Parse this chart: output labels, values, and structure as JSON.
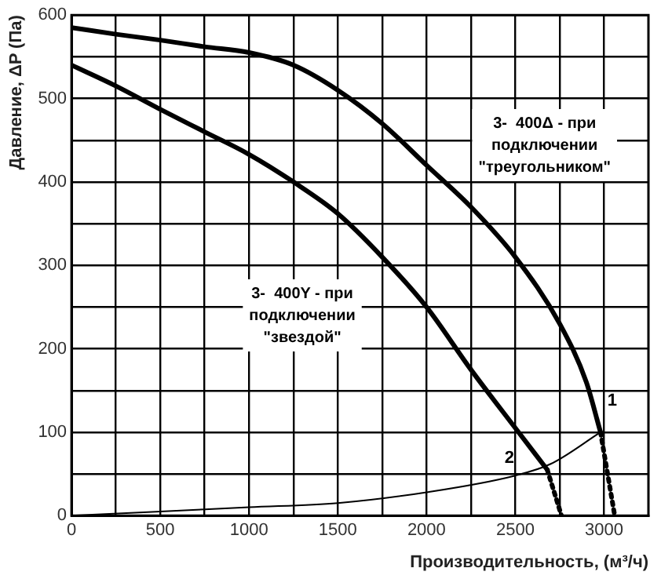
{
  "chart_data": {
    "type": "line",
    "xlabel": "Производительность, (м³/ч)",
    "ylabel": "Давление, ΔP (Па)",
    "xlim": [
      0,
      3250
    ],
    "ylim": [
      0,
      600
    ],
    "xticks": [
      0,
      {
        "value": 250,
        "label": null
      },
      500,
      {
        "value": 750,
        "label": null
      },
      1000,
      {
        "value": 1250,
        "label": null
      },
      1500,
      {
        "value": 1750,
        "label": null
      },
      2000,
      {
        "value": 2250,
        "label": null
      },
      2500,
      {
        "value": 2750,
        "label": null
      },
      3000
    ],
    "yticks": [
      0,
      {
        "value": 50,
        "label": null
      },
      100,
      {
        "value": 150,
        "label": null
      },
      200,
      {
        "value": 250,
        "label": null
      },
      300,
      {
        "value": 350,
        "label": null
      },
      400,
      {
        "value": 450,
        "label": null
      },
      500,
      {
        "value": 550,
        "label": null
      },
      600
    ],
    "grid": true,
    "legend": false,
    "marker": "none",
    "series": [
      {
        "name": "1",
        "color": "#000000",
        "x": [
          0,
          250,
          500,
          750,
          1000,
          1250,
          1500,
          1750,
          2000,
          2250,
          2500,
          2750,
          2900,
          2980
        ],
        "values": [
          585,
          577,
          570,
          562,
          555,
          540,
          510,
          470,
          420,
          370,
          310,
          230,
          160,
          100
        ]
      },
      {
        "name": "2",
        "color": "#000000",
        "x": [
          0,
          250,
          500,
          750,
          1000,
          1250,
          1500,
          1750,
          2000,
          2250,
          2500,
          2680
        ],
        "values": [
          540,
          515,
          487,
          460,
          433,
          400,
          362,
          310,
          250,
          175,
          105,
          55
        ]
      },
      {
        "color": "#000000",
        "line_style": "dotted",
        "x": [
          2980,
          3060
        ],
        "values": [
          100,
          0
        ]
      },
      {
        "color": "#000000",
        "line_style": "dotted",
        "x": [
          2680,
          2760
        ],
        "values": [
          55,
          0
        ]
      },
      {
        "color": "#000000",
        "x": [
          0,
          500,
          1000,
          1500,
          2000,
          2500,
          2700,
          2980
        ],
        "values": [
          0,
          5,
          10,
          15,
          28,
          48,
          62,
          100
        ]
      }
    ],
    "annotations": [
      "3-  400Δ - при\nподключении\n\"треугольником\"",
      "3-  400Y - при\nподключении\n\"звездой\""
    ]
  }
}
